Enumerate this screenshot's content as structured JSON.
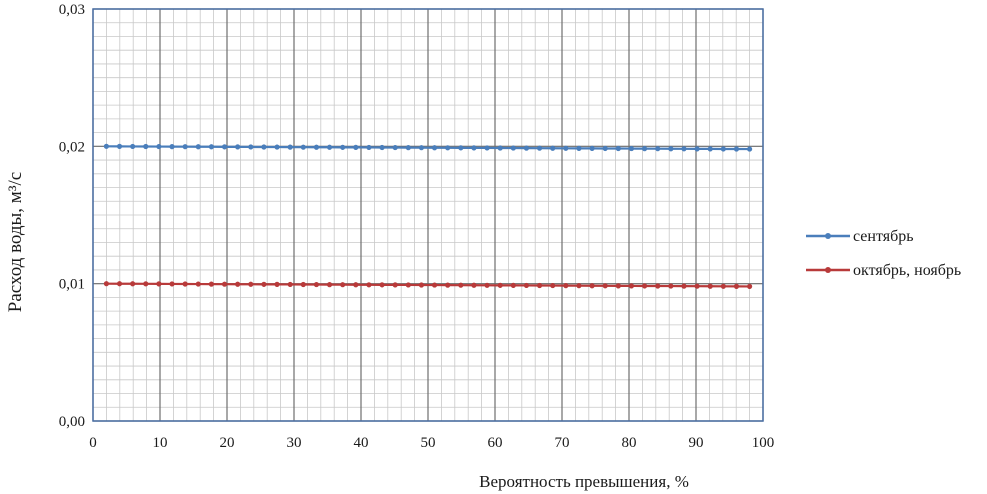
{
  "chart_data": {
    "type": "line",
    "title": "",
    "xlabel": "Вероятность превышения, %",
    "ylabel": "Расход воды, м³/с",
    "xlim": [
      0,
      100
    ],
    "ylim": [
      0,
      0.03
    ],
    "x_ticks": [
      0,
      10,
      20,
      30,
      40,
      50,
      60,
      70,
      80,
      90,
      100
    ],
    "y_ticks": [
      0,
      0.01,
      0.02,
      0.03
    ],
    "x_tick_labels": [
      "0",
      "10",
      "20",
      "30",
      "40",
      "50",
      "60",
      "70",
      "80",
      "90",
      "100"
    ],
    "y_tick_labels": [
      "0,00",
      "0,01",
      "0,02",
      "0,03"
    ],
    "grid": true,
    "legend_position": "right",
    "series": [
      {
        "name": "сентябрь",
        "color": "#4a7ebb",
        "x_start": 2,
        "x_end": 98,
        "n_points": 50,
        "y_start": 0.02,
        "y_end": 0.0198
      },
      {
        "name": "октябрь, ноябрь",
        "color": "#b83a3a",
        "x_start": 2,
        "x_end": 98,
        "n_points": 50,
        "y_start": 0.01,
        "y_end": 0.0098
      }
    ]
  }
}
